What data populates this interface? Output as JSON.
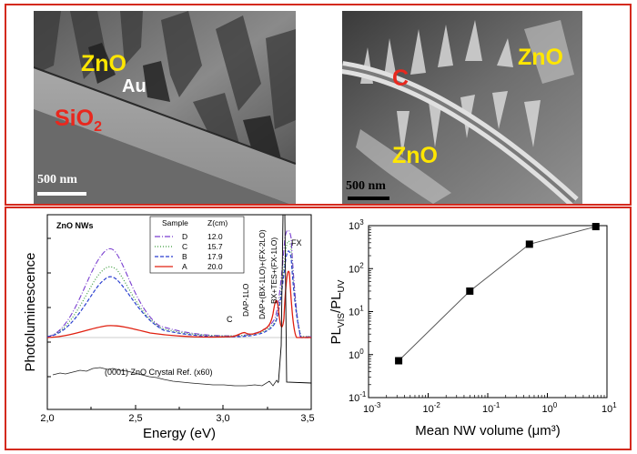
{
  "colors": {
    "frame": "#d42a1e",
    "label_yellow": "#ffe600",
    "label_red": "#e8281e"
  },
  "tem_left": {
    "labels": {
      "zno": "ZnO",
      "au": "Au",
      "sio2_main": "SiO",
      "sio2_sub": "2"
    },
    "scale_bar": "500 nm"
  },
  "tem_right": {
    "labels": {
      "c": "C",
      "zno_a": "ZnO",
      "zno_b": "ZnO"
    },
    "scale_bar": "500 nm"
  },
  "pl_panel": {
    "title": "ZnO NWs",
    "legend_header": [
      "Sample",
      "Z(cm)"
    ],
    "legend": [
      {
        "sample": "D",
        "z": "12.0",
        "color": "#7a3fd0",
        "dash": "6,2,1,2"
      },
      {
        "sample": "C",
        "z": "15.7",
        "color": "#3a9a3a",
        "dash": "1,2"
      },
      {
        "sample": "B",
        "z": "17.9",
        "color": "#2a3fd0",
        "dash": "4,2"
      },
      {
        "sample": "A",
        "z": "20.0",
        "color": "#e02010",
        "dash": ""
      }
    ],
    "annotations": {
      "c": "C",
      "dap": "DAP-1LO",
      "dap_bx": "DAP+(BX-1LO)+(FX-2LO)",
      "bx_tes": "BX+TES+(FX-1LO)",
      "fx": "FX",
      "ref": "(0001) ZnO Crystal Ref. (x60)"
    },
    "xlabel": "Energy (eV)",
    "ylabel": "Photoluminescence",
    "xticks": [
      "2,0",
      "2,5",
      "3,0",
      "3,5"
    ]
  },
  "chart_data": {
    "type": "scatter",
    "title": "",
    "xlabel": "Mean NW volume (μm³)",
    "ylabel": "PL_VIS/PL_UV",
    "xscale": "log",
    "yscale": "log",
    "xlim": [
      0.001,
      10
    ],
    "ylim": [
      0.1,
      1000
    ],
    "xtick_exponents": [
      -3,
      -2,
      -1,
      0,
      1
    ],
    "ytick_exponents": [
      -1,
      0,
      1,
      2,
      3
    ],
    "x": [
      0.0032,
      0.05,
      0.5,
      6.5
    ],
    "y": [
      0.72,
      30,
      370,
      950
    ],
    "grid": false,
    "marker": "square",
    "line": true
  }
}
